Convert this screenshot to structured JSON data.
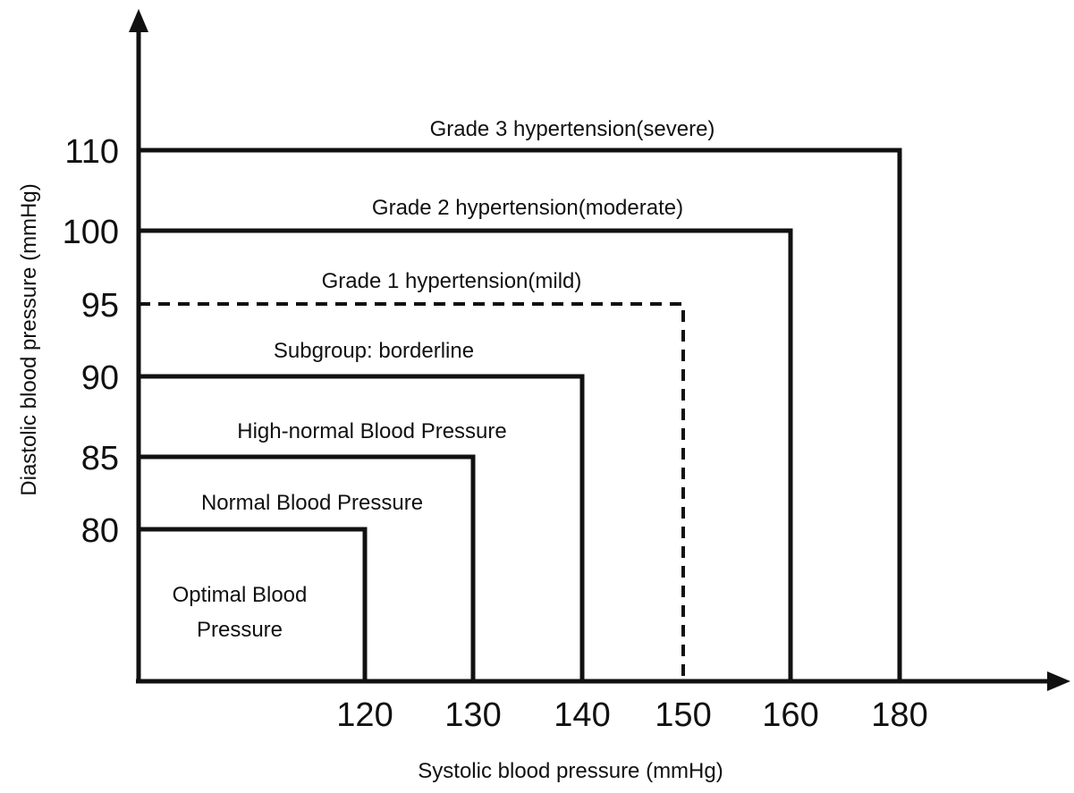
{
  "diagram": {
    "x_axis": {
      "label": "Systolic blood pressure (mmHg)",
      "ticks": [
        "120",
        "130",
        "140",
        "150",
        "160",
        "180"
      ]
    },
    "y_axis": {
      "label": "Diastolic blood pressure (mmHg)",
      "ticks": [
        "110",
        "100",
        "95",
        "90",
        "85",
        "80"
      ]
    },
    "regions": [
      {
        "label": "Grade 3 hypertension(severe)",
        "systolic_limit": 180,
        "diastolic_limit": 110,
        "line_style": "solid"
      },
      {
        "label": "Grade 2 hypertension(moderate)",
        "systolic_limit": 160,
        "diastolic_limit": 100,
        "line_style": "solid"
      },
      {
        "label": "Grade 1 hypertension(mild)",
        "systolic_limit": 150,
        "diastolic_limit": 95,
        "line_style": "dashed"
      },
      {
        "label": "Subgroup: borderline",
        "systolic_limit": 140,
        "diastolic_limit": 90,
        "line_style": "solid"
      },
      {
        "label": "High-normal Blood Pressure",
        "systolic_limit": 130,
        "diastolic_limit": 85,
        "line_style": "solid"
      },
      {
        "label": "Normal Blood Pressure",
        "systolic_limit": 120,
        "diastolic_limit": 80,
        "line_style": "solid"
      }
    ],
    "optimal_label_lines": [
      "Optimal Blood",
      "Pressure"
    ],
    "line_color": "#111111"
  }
}
